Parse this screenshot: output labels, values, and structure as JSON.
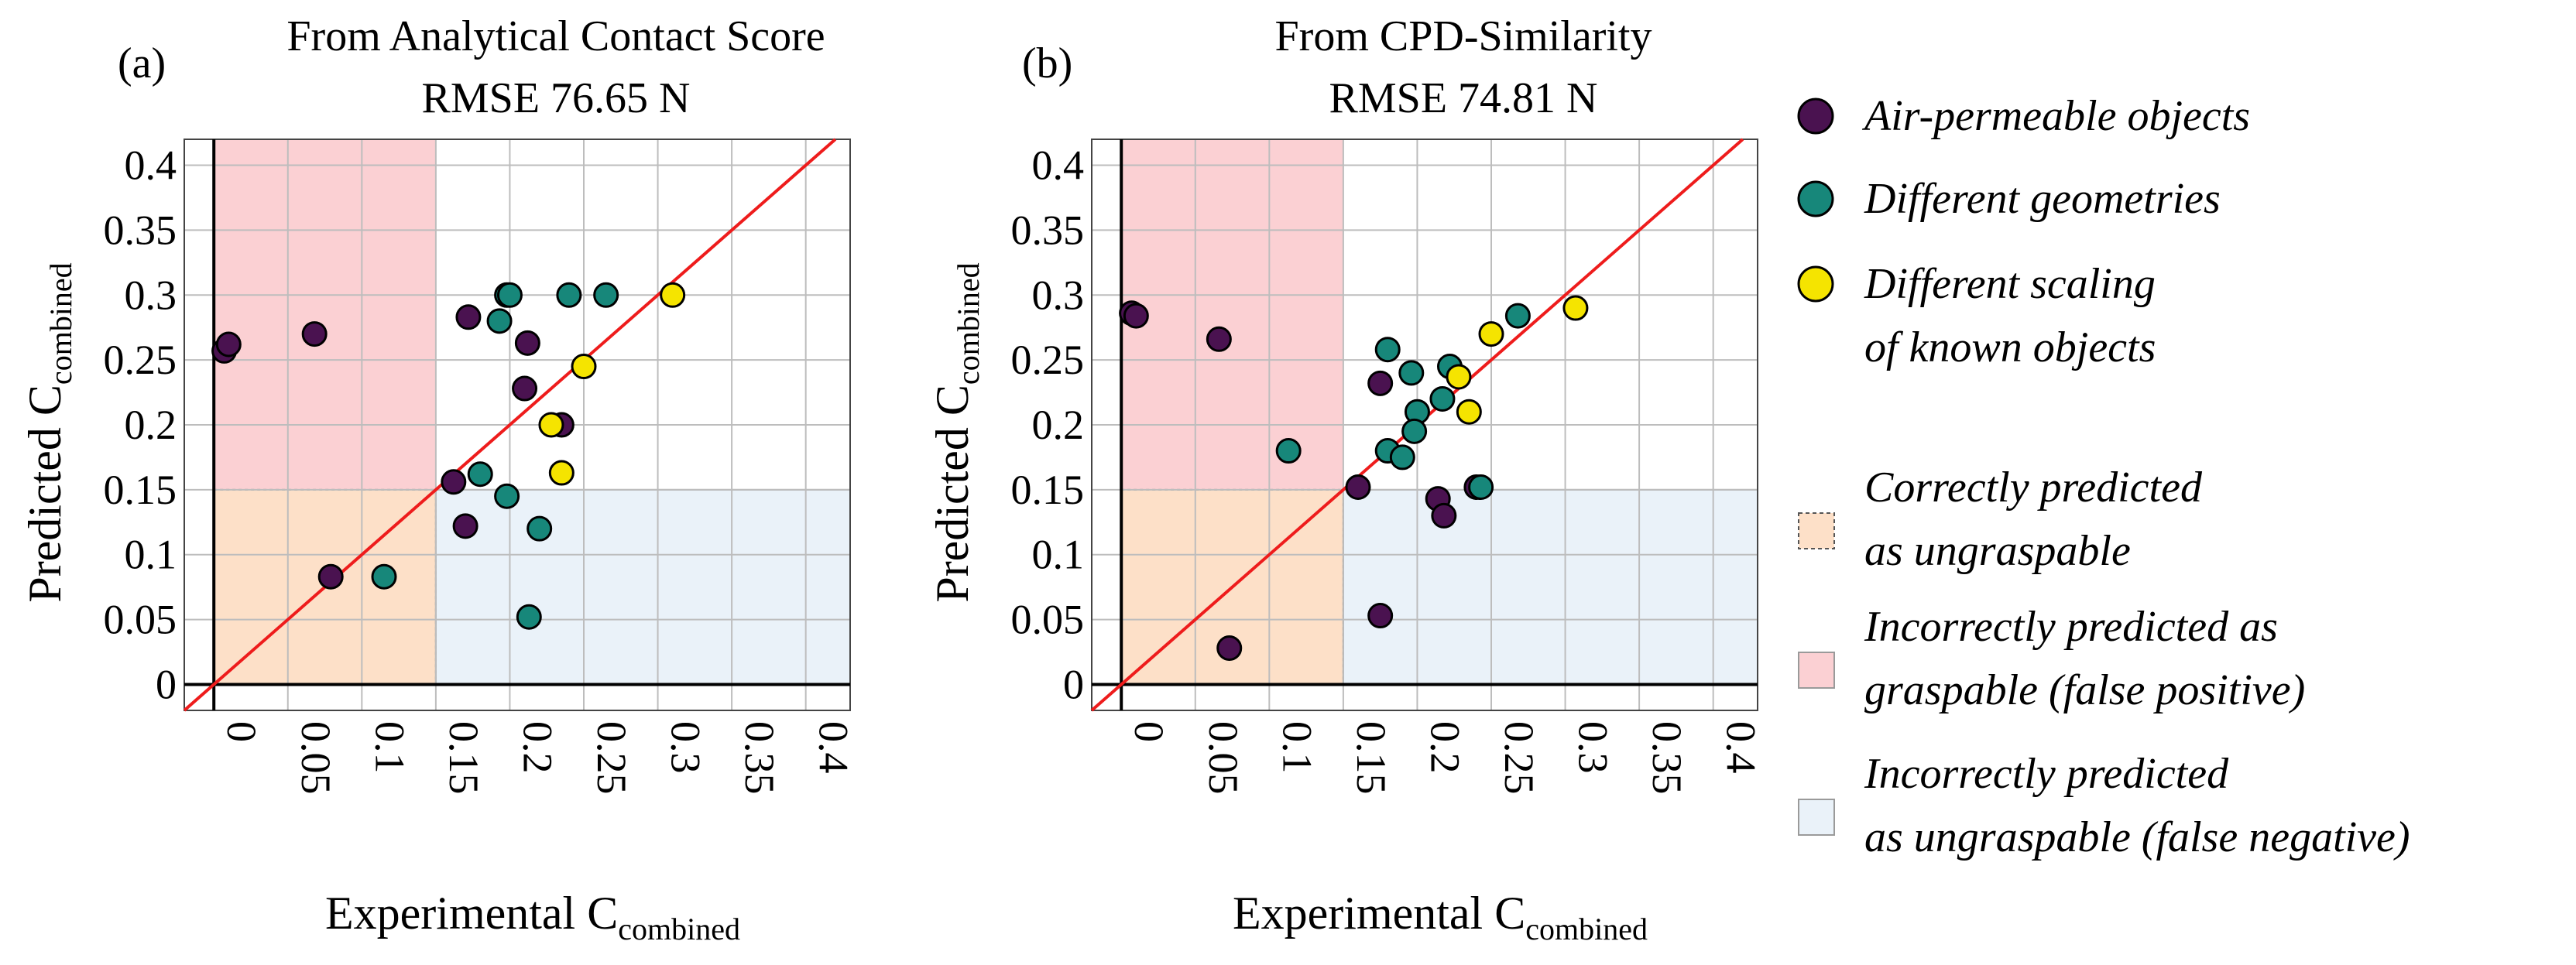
{
  "figure": {
    "legend": {
      "series": [
        {
          "name": "Air-permeable objects",
          "color": "#4a1250"
        },
        {
          "name": "Different geometries",
          "color": "#17877a"
        },
        {
          "name": "Different scaling",
          "name_line2": "of known objects",
          "color": "#f5e400"
        }
      ],
      "regions": [
        {
          "key": "correct_ungraspable",
          "lines": [
            "Correctly predicted",
            "as ungraspable"
          ],
          "color": "#fde0c8"
        },
        {
          "key": "false_positive",
          "lines": [
            "Incorrectly predicted as",
            "graspable (false positive)"
          ],
          "color": "#fbd0d3"
        },
        {
          "key": "false_negative",
          "lines": [
            "Incorrectly predicted",
            "as ungraspable (false negative)"
          ],
          "color": "#eaf2f9"
        }
      ]
    },
    "colors": {
      "point_air": "#4a1250",
      "point_geo": "#17877a",
      "point_scale": "#f5e400",
      "diag_line": "#ee1c1c",
      "grid": "#bdbdbd"
    }
  },
  "chart_data": [
    {
      "type": "scatter",
      "panel_label": "(a)",
      "title_line1": "From Analytical Contact Score",
      "title_line2": "RMSE 76.65 N",
      "xlabel": "Experimental C",
      "xlabel_sub": "combined",
      "ylabel": "Predicted C",
      "ylabel_sub": "combined",
      "xlim": [
        -0.02,
        0.43
      ],
      "ylim": [
        -0.02,
        0.42
      ],
      "threshold": 0.15,
      "xticks": [
        "0",
        "0.05",
        "0.1",
        "0.15",
        "0.2",
        "0.25",
        "0.3",
        "0.35",
        "0.4"
      ],
      "yticks": [
        "0",
        "0.05",
        "0.1",
        "0.15",
        "0.2",
        "0.25",
        "0.3",
        "0.35",
        "0.4"
      ],
      "series": [
        {
          "name": "Air-permeable objects",
          "points": [
            [
              0.007,
              0.257
            ],
            [
              0.01,
              0.262
            ],
            [
              0.068,
              0.27
            ],
            [
              0.079,
              0.083
            ],
            [
              0.172,
              0.283
            ],
            [
              0.17,
              0.122
            ],
            [
              0.212,
              0.263
            ],
            [
              0.21,
              0.228
            ],
            [
              0.235,
              0.2
            ]
          ]
        },
        {
          "name": "Different geometries",
          "points": [
            [
              0.198,
              0.3
            ],
            [
              0.2,
              0.3
            ],
            [
              0.193,
              0.28
            ],
            [
              0.24,
              0.3
            ],
            [
              0.265,
              0.3
            ],
            [
              0.18,
              0.162
            ],
            [
              0.198,
              0.145
            ],
            [
              0.22,
              0.12
            ],
            [
              0.213,
              0.052
            ],
            [
              0.115,
              0.083
            ]
          ]
        },
        {
          "name": "Different scaling of known objects",
          "points": [
            [
              0.31,
              0.3
            ],
            [
              0.25,
              0.245
            ],
            [
              0.228,
              0.2
            ],
            [
              0.235,
              0.163
            ]
          ]
        }
      ],
      "extra_points": [
        {
          "series": "Air-permeable objects",
          "x": 0.162,
          "y": 0.156
        }
      ]
    },
    {
      "type": "scatter",
      "panel_label": "(b)",
      "title_line1": "From CPD-Similarity",
      "title_line2": "RMSE 74.81 N",
      "xlabel": "Experimental C",
      "xlabel_sub": "combined",
      "ylabel": "Predicted C",
      "ylabel_sub": "combined",
      "xlim": [
        -0.02,
        0.43
      ],
      "ylim": [
        -0.02,
        0.42
      ],
      "threshold": 0.15,
      "xticks": [
        "0",
        "0.05",
        "0.1",
        "0.15",
        "0.2",
        "0.25",
        "0.3",
        "0.35",
        "0.4"
      ],
      "yticks": [
        "0",
        "0.05",
        "0.1",
        "0.15",
        "0.2",
        "0.25",
        "0.3",
        "0.35",
        "0.4"
      ],
      "series": [
        {
          "name": "Air-permeable objects",
          "points": [
            [
              0.007,
              0.286
            ],
            [
              0.01,
              0.284
            ],
            [
              0.066,
              0.266
            ],
            [
              0.073,
              0.028
            ],
            [
              0.16,
              0.152
            ],
            [
              0.175,
              0.232
            ],
            [
              0.175,
              0.053
            ],
            [
              0.214,
              0.143
            ],
            [
              0.218,
              0.13
            ],
            [
              0.24,
              0.152
            ]
          ]
        },
        {
          "name": "Different geometries",
          "points": [
            [
              0.113,
              0.18
            ],
            [
              0.18,
              0.258
            ],
            [
              0.196,
              0.24
            ],
            [
              0.222,
              0.245
            ],
            [
              0.268,
              0.284
            ],
            [
              0.217,
              0.22
            ],
            [
              0.2,
              0.21
            ],
            [
              0.198,
              0.195
            ],
            [
              0.18,
              0.18
            ],
            [
              0.19,
              0.175
            ],
            [
              0.243,
              0.152
            ]
          ]
        },
        {
          "name": "Different scaling of known objects",
          "points": [
            [
              0.307,
              0.29
            ],
            [
              0.25,
              0.27
            ],
            [
              0.228,
              0.237
            ],
            [
              0.235,
              0.21
            ]
          ]
        }
      ]
    }
  ]
}
